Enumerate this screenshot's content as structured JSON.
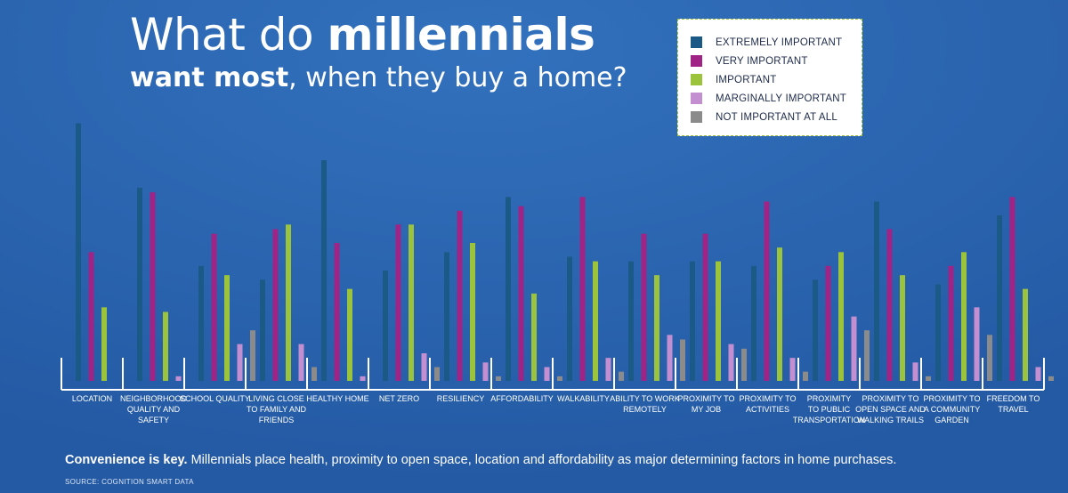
{
  "title": {
    "line1_plain": "What do ",
    "line1_bold": "millennials",
    "line2_bold": "want most",
    "line2_plain": ", when they buy a home?"
  },
  "footer": {
    "lead": "Convenience is key.",
    "text": " Millennials place health, proximity to open space, location and affordability as major determining factors in home purchases.",
    "source": "SOURCE: COGNITION SMART DATA"
  },
  "colors": {
    "background": "#2a63ad",
    "extremely": "#1b5a86",
    "very": "#a02386",
    "important": "#9bc43c",
    "marginally": "#c48fd1",
    "not": "#8b8b8b",
    "axis": "#ffffff"
  },
  "chart_data": {
    "type": "bar",
    "categories": [
      [
        "LOCATION"
      ],
      [
        "NEIGHBORHOOD",
        "QUALITY AND",
        "SAFETY"
      ],
      [
        "SCHOOL QUALITY"
      ],
      [
        "LIVING CLOSE",
        "TO FAMILY AND",
        "FRIENDS"
      ],
      [
        "HEALTHY HOME"
      ],
      [
        "NET ZERO"
      ],
      [
        "RESILIENCY"
      ],
      [
        "AFFORDABILITY"
      ],
      [
        "WALKABILITY"
      ],
      [
        "ABILITY TO WORK",
        "REMOTELY"
      ],
      [
        "PROXIMITY TO",
        "MY JOB"
      ],
      [
        "PROXIMITY TO",
        "ACTIVITIES"
      ],
      [
        "PROXIMITY",
        "TO PUBLIC",
        "TRANSPORTATION"
      ],
      [
        "PROXIMITY TO",
        "OPEN SPACE AND",
        "WALKING TRAILS"
      ],
      [
        "PROXIMITY TO",
        "A COMMUNITY",
        "GARDEN"
      ],
      [
        "FREEDOM TO",
        "TRAVEL"
      ]
    ],
    "series": [
      {
        "name": "EXTREMELY IMPORTANT",
        "color": "#1b5a86",
        "values": [
          56,
          42,
          25,
          22,
          48,
          24,
          28,
          40,
          27,
          26,
          26,
          25,
          22,
          39,
          21,
          36
        ]
      },
      {
        "name": "VERY IMPORTANT",
        "color": "#a02386",
        "values": [
          28,
          41,
          32,
          33,
          30,
          34,
          37,
          38,
          40,
          32,
          32,
          39,
          25,
          33,
          25,
          40
        ]
      },
      {
        "name": "IMPORTANT",
        "color": "#9bc43c",
        "values": [
          16,
          15,
          23,
          34,
          20,
          34,
          30,
          19,
          26,
          23,
          26,
          29,
          28,
          23,
          28,
          20
        ]
      },
      {
        "name": "MARGINALLY IMPORTANT",
        "color": "#c48fd1",
        "values": [
          0,
          1,
          8,
          8,
          1,
          6,
          4,
          3,
          5,
          10,
          8,
          5,
          14,
          4,
          16,
          3
        ]
      },
      {
        "name": "NOT IMPORTANT AT ALL",
        "color": "#8b8b8b",
        "values": [
          0,
          0,
          11,
          3,
          0,
          3,
          1,
          1,
          2,
          9,
          7,
          2,
          11,
          1,
          10,
          1
        ]
      }
    ],
    "ylim": [
      0,
      60
    ],
    "legend_position": "top-right",
    "grid": false
  }
}
